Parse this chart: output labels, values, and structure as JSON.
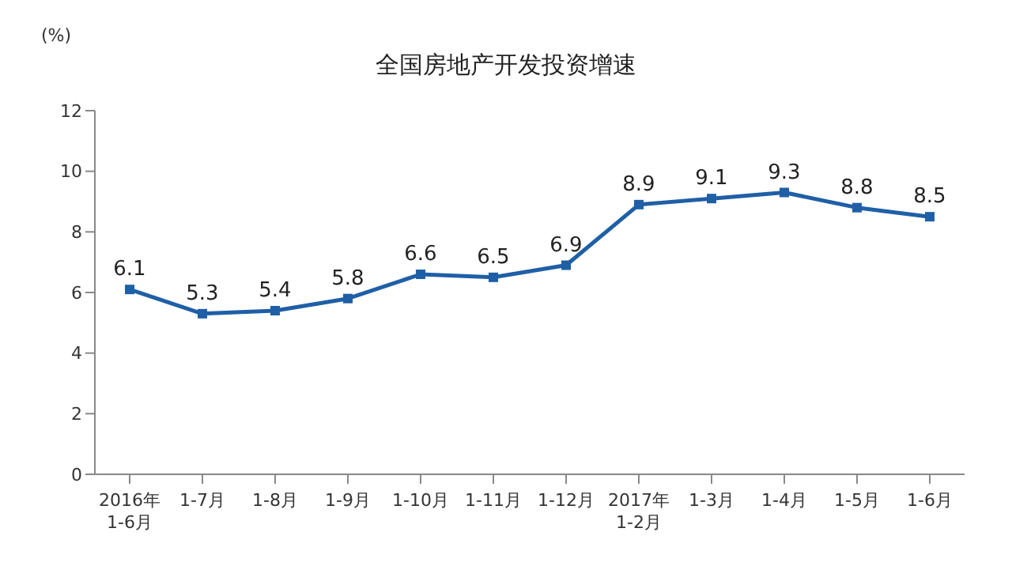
{
  "chart_data": {
    "type": "line",
    "title": "全国房地产开发投资增速",
    "ylabel": "(%)",
    "categories": [
      "2016年\n1-6月",
      "1-7月",
      "1-8月",
      "1-9月",
      "1-10月",
      "1-11月",
      "1-12月",
      "2017年\n1-2月",
      "1-3月",
      "1-4月",
      "1-5月",
      "1-6月"
    ],
    "series": [
      {
        "color": "#1f5fa6",
        "values": [
          6.1,
          5.3,
          5.4,
          5.8,
          6.6,
          6.5,
          6.9,
          8.9,
          9.1,
          9.3,
          8.8,
          8.5
        ]
      }
    ],
    "ylim": [
      0,
      12
    ],
    "yticks": [
      0,
      2,
      4,
      6,
      8,
      10,
      12
    ],
    "grid": false,
    "marker": "square",
    "data_labels": true
  }
}
